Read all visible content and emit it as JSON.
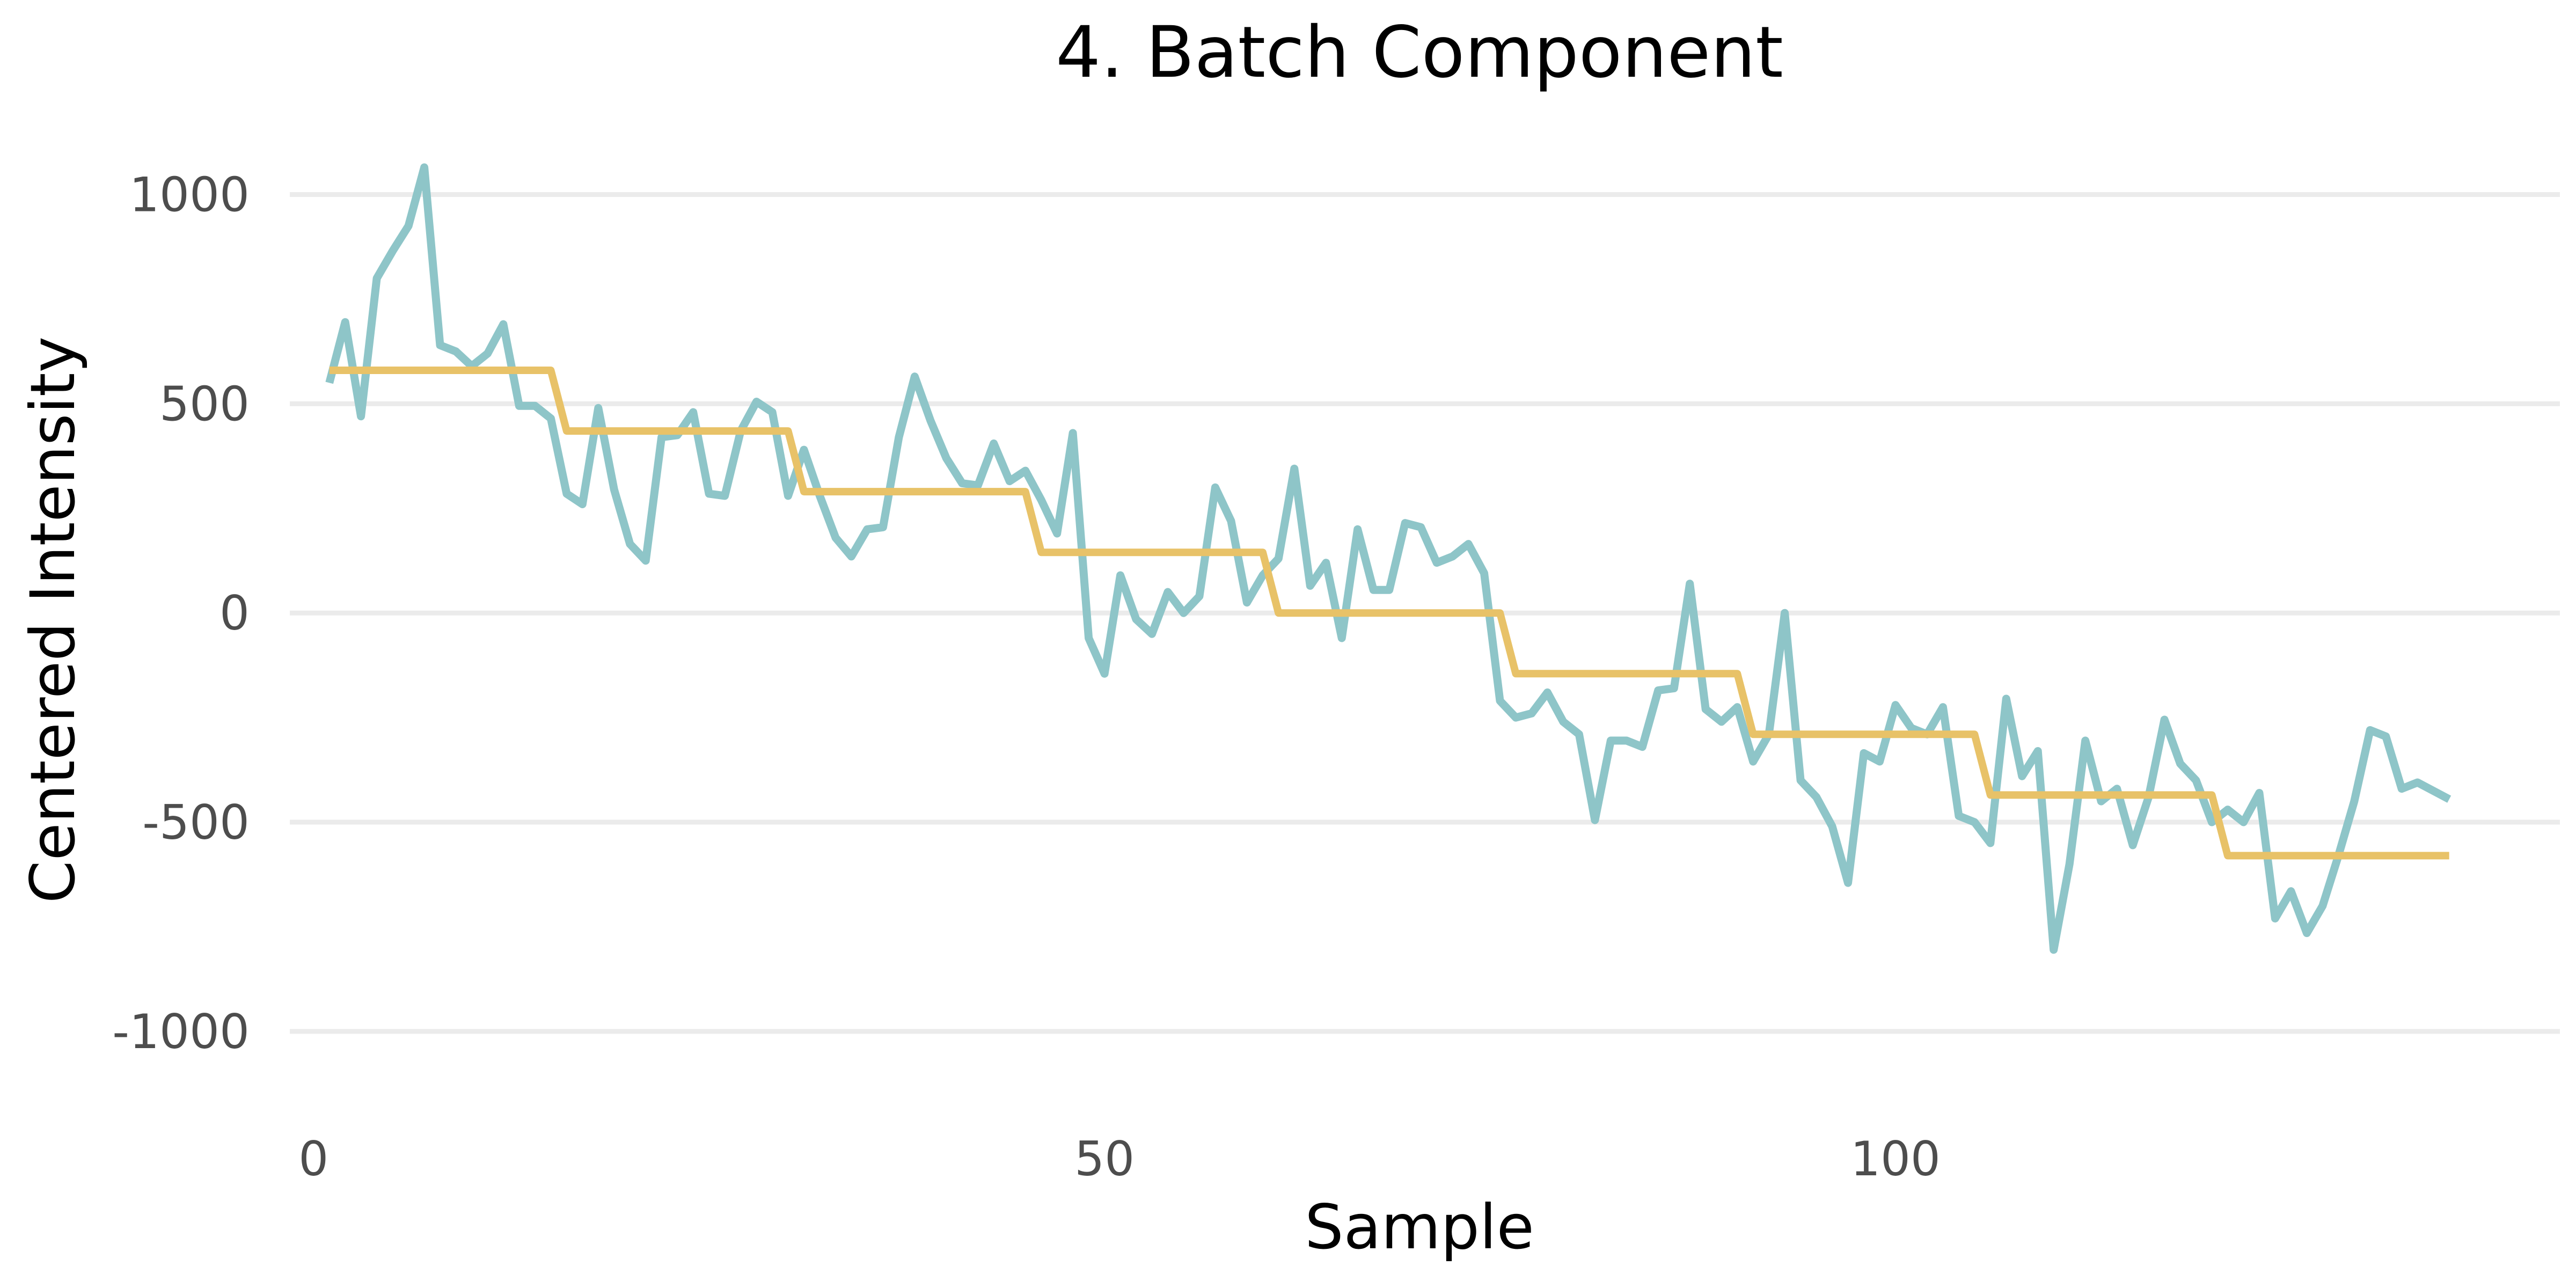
{
  "chart_data": {
    "type": "line",
    "title": "4. Batch Component",
    "xlabel": "Sample",
    "ylabel": "Centered Intensity",
    "xlim": [
      -1.5,
      142
    ],
    "ylim": [
      -1190,
      1170
    ],
    "x_ticks": [
      0,
      50,
      100
    ],
    "x_tick_labels": [
      "0",
      "50",
      "100"
    ],
    "y_ticks": [
      1000,
      500,
      0,
      -500,
      -1000
    ],
    "y_tick_labels": [
      "1000",
      "500",
      "0",
      "-500",
      "-1000"
    ],
    "grid": "horizontal",
    "legend": "none",
    "series": [
      {
        "color": "#8ec5c8",
        "x": [
          1,
          2,
          3,
          4,
          5,
          6,
          7,
          8,
          9,
          10,
          11,
          12,
          13,
          14,
          15,
          16,
          17,
          18,
          19,
          20,
          21,
          22,
          23,
          24,
          25,
          26,
          27,
          28,
          29,
          30,
          31,
          32,
          33,
          34,
          35,
          36,
          37,
          38,
          39,
          40,
          41,
          42,
          43,
          44,
          45,
          46,
          47,
          48,
          49,
          50,
          51,
          52,
          53,
          54,
          55,
          56,
          57,
          58,
          59,
          60,
          61,
          62,
          63,
          64,
          65,
          66,
          67,
          68,
          69,
          70,
          71,
          72,
          73,
          74,
          75,
          76,
          77,
          78,
          79,
          80,
          81,
          82,
          83,
          84,
          85,
          86,
          87,
          88,
          89,
          90,
          91,
          92,
          93,
          94,
          95,
          96,
          97,
          98,
          99,
          100,
          101,
          102,
          103,
          104,
          105,
          106,
          107,
          108,
          109,
          110,
          111,
          112,
          113,
          114,
          115,
          116,
          117,
          118,
          119,
          120,
          121,
          122,
          123,
          124,
          125,
          126,
          127,
          128,
          129,
          130,
          131,
          132,
          133,
          134,
          135
        ],
        "y": [
          550,
          695,
          470,
          800,
          865,
          925,
          1065,
          640,
          625,
          590,
          620,
          690,
          495,
          495,
          465,
          285,
          260,
          490,
          295,
          165,
          125,
          420,
          425,
          480,
          285,
          280,
          435,
          505,
          480,
          280,
          390,
          280,
          180,
          135,
          200,
          205,
          420,
          565,
          460,
          370,
          310,
          305,
          405,
          315,
          340,
          270,
          190,
          430,
          -60,
          -145,
          90,
          -15,
          -50,
          50,
          0,
          40,
          300,
          220,
          25,
          90,
          130,
          345,
          65,
          120,
          -60,
          200,
          55,
          55,
          215,
          205,
          120,
          135,
          165,
          95,
          -210,
          -250,
          -240,
          -190,
          -260,
          -290,
          -495,
          -305,
          -305,
          -320,
          -185,
          -180,
          70,
          -230,
          -260,
          -225,
          -355,
          -290,
          0,
          -400,
          -440,
          -510,
          -645,
          -335,
          -355,
          -220,
          -275,
          -290,
          -225,
          -485,
          -500,
          -550,
          -205,
          -390,
          -330,
          -805,
          -600,
          -305,
          -450,
          -420,
          -555,
          -440,
          -255,
          -360,
          -400,
          -500,
          -470,
          -500,
          -430,
          -730,
          -665,
          -765,
          -700,
          -580,
          -450,
          -280,
          -295,
          -420,
          -405,
          -425,
          -445
        ]
      },
      {
        "color": "#e8c268",
        "x": [
          1,
          15,
          16,
          30,
          31,
          45,
          46,
          60,
          61,
          75,
          76,
          90,
          91,
          105,
          106,
          120,
          121,
          135
        ],
        "y": [
          580,
          580,
          435,
          435,
          290,
          290,
          145,
          145,
          0,
          0,
          -145,
          -145,
          -290,
          -290,
          -435,
          -435,
          -580,
          -580
        ]
      }
    ]
  }
}
